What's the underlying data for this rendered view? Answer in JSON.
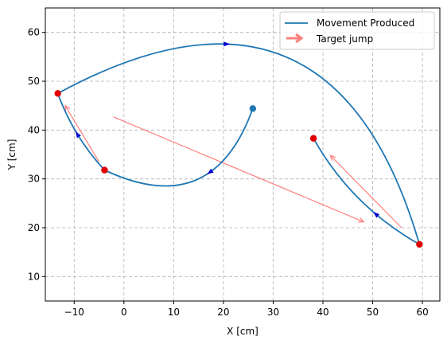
{
  "chart_data": {
    "type": "line",
    "xlabel": "X [cm]",
    "ylabel": "Y [cm]",
    "xlim": [
      -15.8,
      63.5
    ],
    "ylim": [
      5,
      65
    ],
    "xticks": [
      -10,
      0,
      10,
      20,
      30,
      40,
      50,
      60
    ],
    "yticks": [
      10,
      20,
      30,
      40,
      50,
      60
    ],
    "grid": true,
    "legend": {
      "placement": "top-right",
      "entries": [
        {
          "label": "Movement Produced",
          "kind": "line",
          "color": "#1f77b4"
        },
        {
          "label": "Target jump",
          "kind": "arrow",
          "color": "#ff7f7f"
        }
      ]
    },
    "movement": {
      "color": "#1f77b4",
      "start": [
        25.9,
        44.4
      ],
      "segments": [
        {
          "from": [
            25.9,
            44.4
          ],
          "to": [
            -3.9,
            31.8
          ],
          "bulge": -0.55,
          "arrow_at": 0.4
        },
        {
          "from": [
            -3.9,
            31.8
          ],
          "to": [
            -13.3,
            47.5
          ],
          "bulge": -0.1,
          "arrow_at": 0.5
        },
        {
          "from": [
            -13.3,
            47.5
          ],
          "to": [
            59.4,
            16.6
          ],
          "bulge": -0.62,
          "arrow_at": 0.35
        },
        {
          "from": [
            59.4,
            16.6
          ],
          "to": [
            38.1,
            38.3
          ],
          "bulge": -0.14,
          "arrow_at": 0.35
        }
      ],
      "arrow_color": "#0000cc"
    },
    "target_points": {
      "color": "#e00000",
      "points": [
        [
          -3.9,
          31.8
        ],
        [
          -13.3,
          47.5
        ],
        [
          59.4,
          16.6
        ],
        [
          38.1,
          38.3
        ]
      ]
    },
    "target_jumps": {
      "color": "#ff8080",
      "arrows": [
        {
          "from": [
            -5.0,
            33.5
          ],
          "to": [
            -11.8,
            45.0
          ]
        },
        {
          "from": [
            -2.1,
            42.7
          ],
          "to": [
            48.2,
            21.2
          ]
        },
        {
          "from": [
            55.8,
            20.0
          ],
          "to": [
            41.5,
            34.8
          ]
        }
      ]
    }
  }
}
